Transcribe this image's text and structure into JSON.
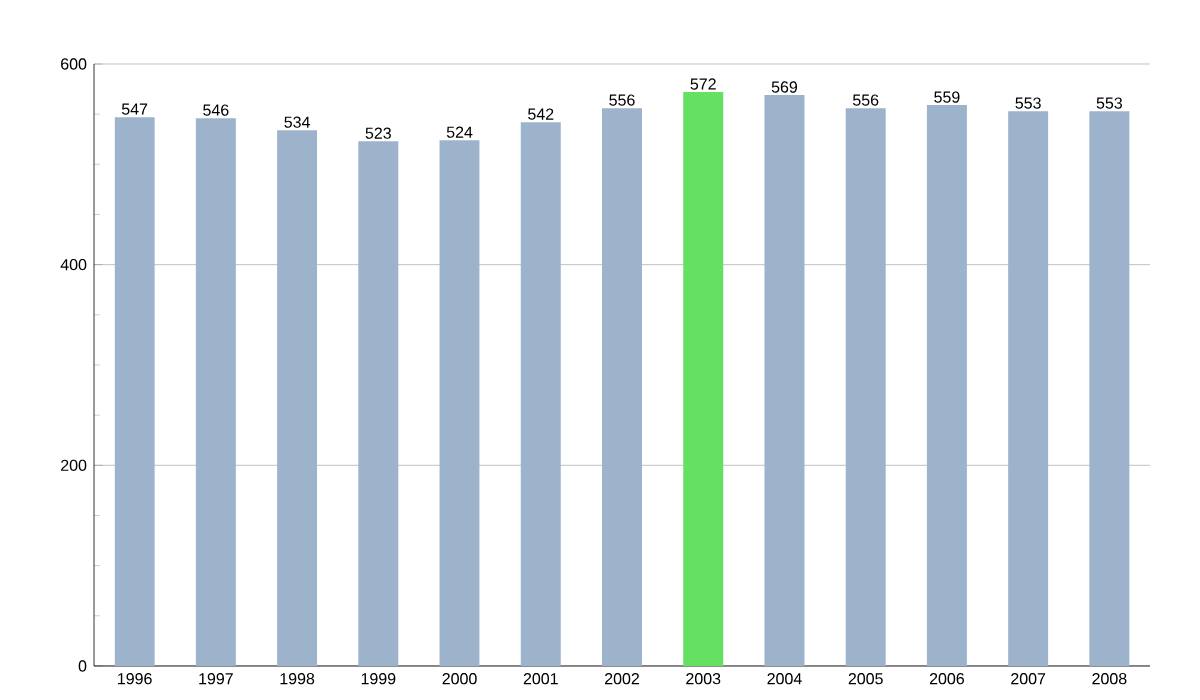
{
  "chart_data": {
    "type": "bar",
    "categories": [
      "1996",
      "1997",
      "1998",
      "1999",
      "2000",
      "2001",
      "2002",
      "2003",
      "2004",
      "2005",
      "2006",
      "2007",
      "2008"
    ],
    "values": [
      547,
      546,
      534,
      523,
      524,
      542,
      556,
      572,
      569,
      556,
      559,
      553,
      553
    ],
    "colors": [
      "#9db3cc",
      "#9db3cc",
      "#9db3cc",
      "#9db3cc",
      "#9db3cc",
      "#9db3cc",
      "#9db3cc",
      "#66e060",
      "#9db3cc",
      "#9db3cc",
      "#9db3cc",
      "#9db3cc",
      "#9db3cc"
    ],
    "ylim": [
      0,
      600
    ],
    "yticks": [
      0,
      200,
      400,
      600
    ],
    "grid": "y",
    "data_labels": true
  }
}
